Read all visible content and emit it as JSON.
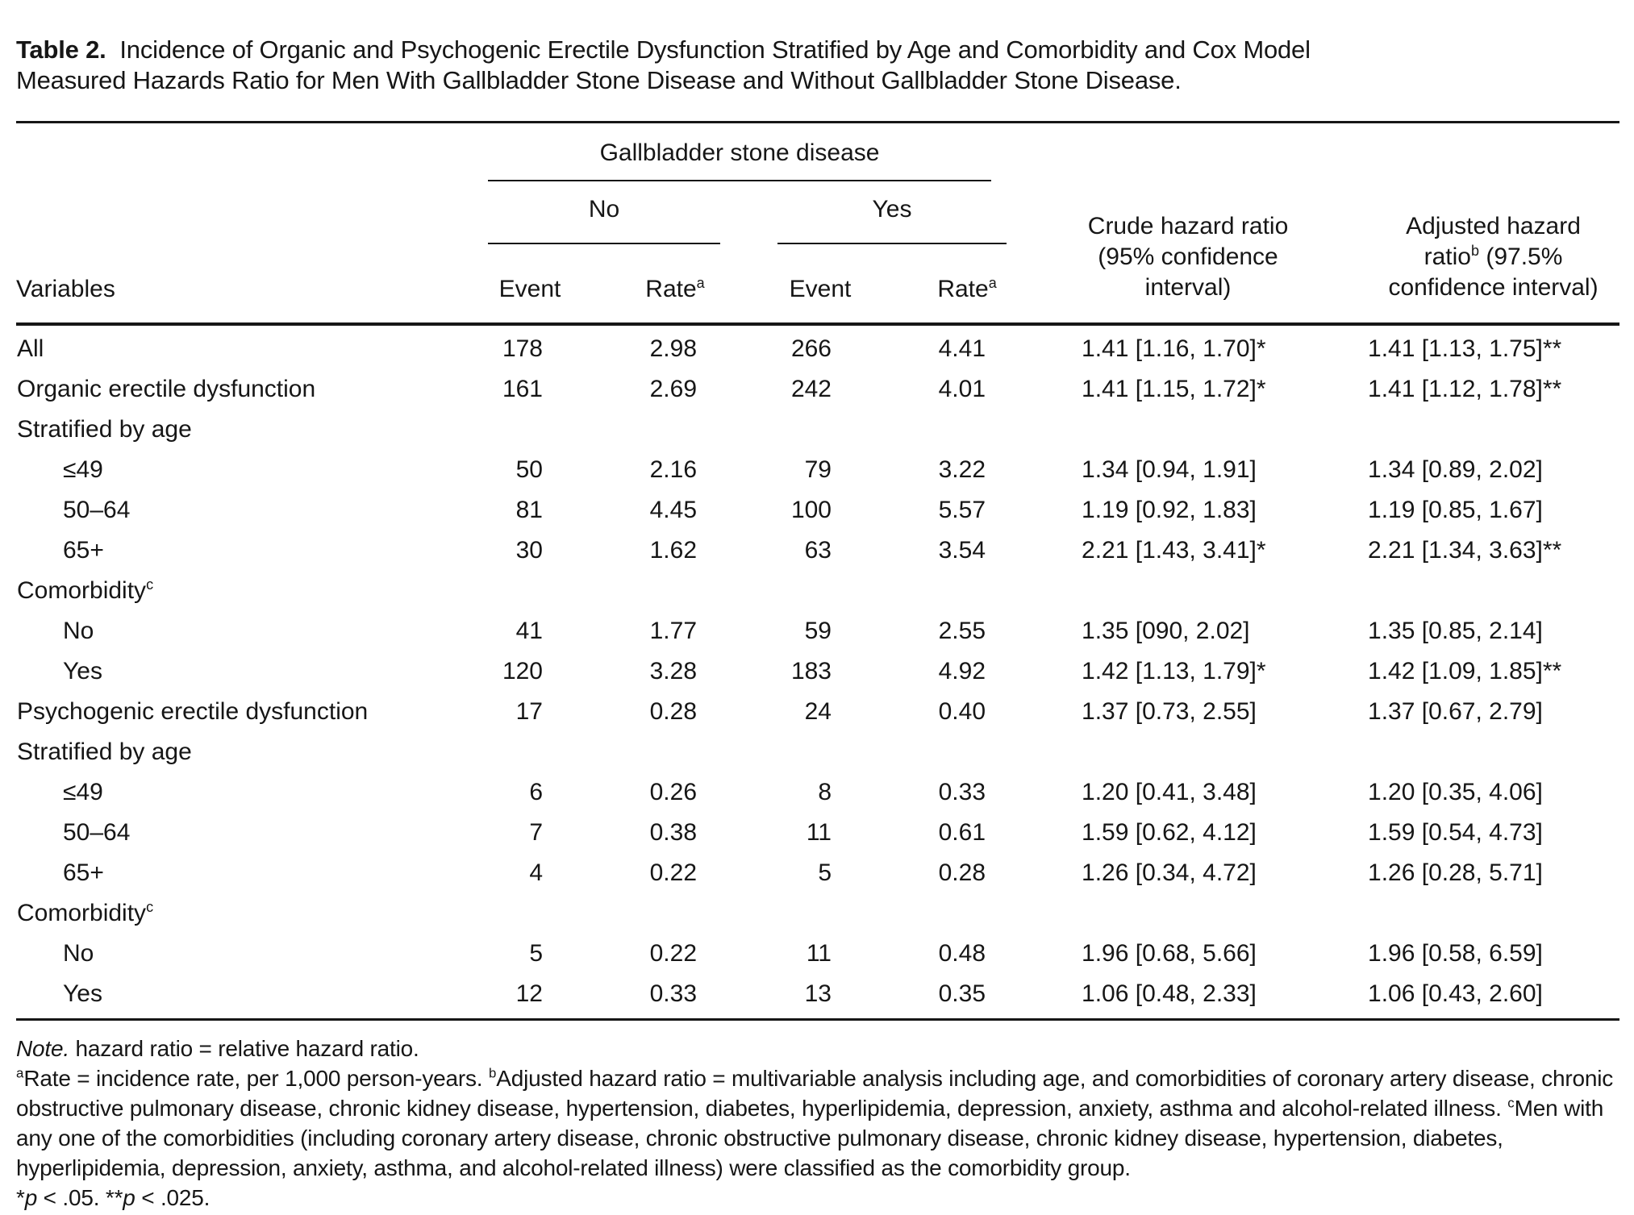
{
  "title": {
    "label": "Table 2.",
    "text": "Incidence of Organic and Psychogenic Erectile Dysfunction Stratified by Age and Comorbidity and Cox Model Measured Hazards Ratio for Men With Gallbladder Stone Disease and Without Gallbladder Stone Disease."
  },
  "table": {
    "spanner": "Gallbladder stone disease",
    "group_no": "No",
    "group_yes": "Yes",
    "col_variables": "Variables",
    "col_event": "Event",
    "col_rate": "Rate",
    "rate_sup": "a",
    "crude": {
      "l1": "Crude hazard ratio",
      "l2": "(95% confidence",
      "l3": "interval)"
    },
    "adjusted": {
      "l1": "Adjusted hazard",
      "l2a": "ratio",
      "l2sup": "b",
      "l2b": " (97.5%",
      "l3": "confidence interval)"
    },
    "rows": [
      {
        "label": "All",
        "cells": [
          "178",
          "2.98",
          "266",
          "4.41",
          "1.41 [1.16, 1.70]*",
          "1.41 [1.13, 1.75]**"
        ]
      },
      {
        "label": "Organic erectile dysfunction",
        "cells": [
          "161",
          "2.69",
          "242",
          "4.01",
          "1.41 [1.15, 1.72]*",
          "1.41 [1.12, 1.78]**"
        ]
      },
      {
        "label": "Stratified by age"
      },
      {
        "label": "≤49",
        "indent": true,
        "cells": [
          "50",
          "2.16",
          "79",
          "3.22",
          "1.34 [0.94, 1.91]",
          "1.34 [0.89, 2.02]"
        ]
      },
      {
        "label": "50–64",
        "indent": true,
        "cells": [
          "81",
          "4.45",
          "100",
          "5.57",
          "1.19 [0.92, 1.83]",
          "1.19 [0.85, 1.67]"
        ]
      },
      {
        "label": "65+",
        "indent": true,
        "cells": [
          "30",
          "1.62",
          "63",
          "3.54",
          "2.21 [1.43, 3.41]*",
          "2.21 [1.34, 3.63]**"
        ]
      },
      {
        "label": "Comorbidity",
        "sup": "c"
      },
      {
        "label": "No",
        "indent": true,
        "cells": [
          "41",
          "1.77",
          "59",
          "2.55",
          "1.35 [090, 2.02]",
          "1.35 [0.85, 2.14]"
        ]
      },
      {
        "label": "Yes",
        "indent": true,
        "cells": [
          "120",
          "3.28",
          "183",
          "4.92",
          "1.42 [1.13, 1.79]*",
          "1.42 [1.09, 1.85]**"
        ]
      },
      {
        "label": "Psychogenic erectile dysfunction",
        "cells": [
          "17",
          "0.28",
          "24",
          "0.40",
          "1.37 [0.73, 2.55]",
          "1.37 [0.67, 2.79]"
        ]
      },
      {
        "label": "Stratified by age"
      },
      {
        "label": "≤49",
        "indent": true,
        "cells": [
          "6",
          "0.26",
          "8",
          "0.33",
          "1.20 [0.41, 3.48]",
          "1.20 [0.35, 4.06]"
        ]
      },
      {
        "label": "50–64",
        "indent": true,
        "cells": [
          "7",
          "0.38",
          "11",
          "0.61",
          "1.59 [0.62, 4.12]",
          "1.59 [0.54, 4.73]"
        ]
      },
      {
        "label": "65+",
        "indent": true,
        "cells": [
          "4",
          "0.22",
          "5",
          "0.28",
          "1.26 [0.34, 4.72]",
          "1.26 [0.28, 5.71]"
        ]
      },
      {
        "label": "Comorbidity",
        "sup": "c"
      },
      {
        "label": "No",
        "indent": true,
        "cells": [
          "5",
          "0.22",
          "11",
          "0.48",
          "1.96 [0.68, 5.66]",
          "1.96 [0.58, 6.59]"
        ]
      },
      {
        "label": "Yes",
        "indent": true,
        "cells": [
          "12",
          "0.33",
          "13",
          "0.35",
          "1.06 [0.48, 2.33]",
          "1.06 [0.43, 2.60]"
        ]
      }
    ]
  },
  "footnotes": {
    "note": [
      {
        "t": "Note.",
        "i": true
      },
      {
        "t": " hazard ratio = relative hazard ratio."
      }
    ],
    "body": [
      {
        "t": "a",
        "s": true
      },
      {
        "t": "Rate = incidence rate, per 1,000 person-years. "
      },
      {
        "t": "b",
        "s": true
      },
      {
        "t": "Adjusted hazard ratio = multivariable analysis including age, and comorbidities of coronary artery disease, chronic obstructive pulmonary disease, chronic kidney disease, hypertension, diabetes, hyperlipidemia, depression, anxiety, asthma and alcohol-related illness. "
      },
      {
        "t": "c",
        "s": true
      },
      {
        "t": "Men with any one of the comorbidities (including coronary artery disease, chronic obstructive pulmonary disease, chronic kidney disease, hypertension, diabetes, hyperlipidemia, depression, anxiety, asthma, and alcohol-related illness) were classified as the comorbidity group."
      }
    ],
    "significance": [
      {
        "t": "*"
      },
      {
        "t": "p",
        "i": true
      },
      {
        "t": " < .05. **"
      },
      {
        "t": "p",
        "i": true
      },
      {
        "t": " < .025."
      }
    ]
  }
}
